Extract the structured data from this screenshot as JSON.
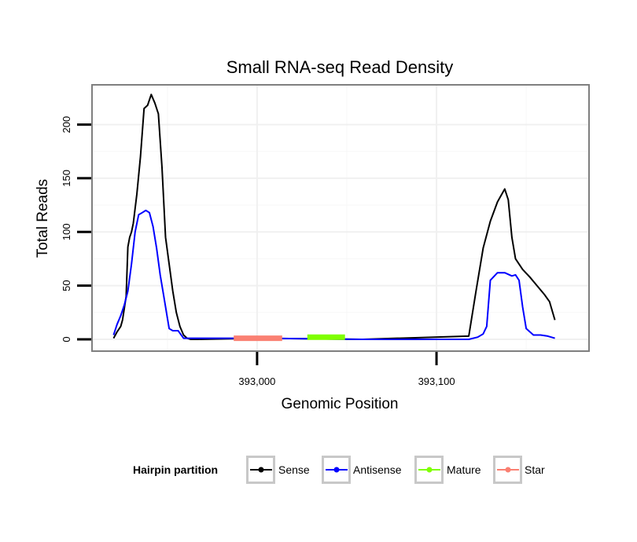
{
  "chart_data": {
    "type": "line",
    "title": "Small RNA-seq Read Density",
    "xlabel": "Genomic Position",
    "ylabel": "Total Reads",
    "xlim": [
      392908,
      393185
    ],
    "ylim": [
      -11,
      237
    ],
    "x_ticks": [
      393000,
      393100
    ],
    "x_tick_labels": [
      "393,000",
      "393,100"
    ],
    "y_ticks": [
      0,
      50,
      100,
      150,
      200
    ],
    "y_tick_labels": [
      "0",
      "50",
      "100",
      "150",
      "200"
    ],
    "grid": true,
    "legend": {
      "title": "Hairpin partition",
      "position": "bottom",
      "entries": [
        {
          "name": "Sense",
          "color": "#000000"
        },
        {
          "name": "Antisense",
          "color": "#0000ff"
        },
        {
          "name": "Mature",
          "color": "#7fff00"
        },
        {
          "name": "Star",
          "color": "#fa8072"
        }
      ]
    },
    "series": [
      {
        "name": "Sense",
        "color": "#000000",
        "x": [
          392920,
          392921,
          392922,
          392924,
          392925,
          392927,
          392928,
          392929,
          392930,
          392931,
          392933,
          392935,
          392937,
          392939,
          392941,
          392943,
          392945,
          392947,
          392949,
          392951,
          392953,
          392955,
          392957,
          392959,
          392961,
          392963,
          392965,
          392967,
          393000,
          393058,
          393059,
          393118,
          393122,
          393126,
          393130,
          393134,
          393138,
          393140,
          393142,
          393144,
          393148,
          393152,
          393156,
          393160,
          393163,
          393166
        ],
        "y": [
          1,
          4,
          7,
          12,
          18,
          40,
          86,
          95,
          100,
          108,
          135,
          170,
          215,
          218,
          228,
          220,
          210,
          160,
          95,
          70,
          45,
          25,
          12,
          4,
          1,
          0,
          0,
          0,
          1,
          0,
          0,
          3,
          45,
          85,
          110,
          128,
          140,
          130,
          95,
          75,
          65,
          58,
          50,
          42,
          35,
          18
        ]
      },
      {
        "name": "Antisense",
        "color": "#0000ff",
        "x": [
          392920,
          392922,
          392924,
          392926,
          392928,
          392930,
          392932,
          392934,
          392936,
          392938,
          392940,
          392942,
          392944,
          392946,
          392948,
          392950,
          392951,
          392953,
          392956,
          392959,
          393000,
          393058,
          393118,
          393123,
          393126,
          393128,
          393130,
          393134,
          393138,
          393142,
          393144,
          393146,
          393148,
          393150,
          393154,
          393158,
          393162,
          393166
        ],
        "y": [
          4,
          14,
          22,
          32,
          45,
          70,
          100,
          116,
          118,
          120,
          118,
          105,
          85,
          60,
          40,
          20,
          10,
          8,
          8,
          1,
          1,
          0,
          0,
          2,
          5,
          12,
          55,
          62,
          62,
          59,
          60,
          55,
          30,
          10,
          4,
          4,
          3,
          1
        ]
      },
      {
        "name": "Mature",
        "color": "#7fff00",
        "x": [
          393028,
          393049
        ],
        "y": [
          2,
          2
        ]
      },
      {
        "name": "Star",
        "color": "#fa8072",
        "x": [
          392987,
          393014
        ],
        "y": [
          1,
          1
        ]
      }
    ]
  }
}
